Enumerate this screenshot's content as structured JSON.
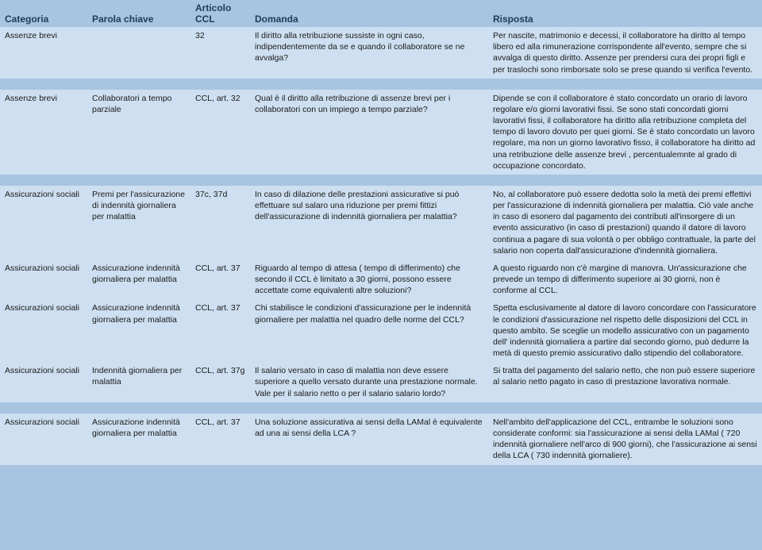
{
  "headers": {
    "categoria": "Categoria",
    "parola_chiave": "Parola chiave",
    "articolo": "Articolo CCL",
    "domanda": "Domanda",
    "risposta": "Risposta"
  },
  "groups": [
    {
      "rows": [
        {
          "categoria": "Assenze brevi",
          "parola_chiave": "",
          "articolo": "32",
          "domanda": "Il diritto alla retribuzione sussiste in ogni caso, indipendentemente da se e quando il collaboratore se ne avvalga?",
          "risposta": "Per nascite, matrimonio e decessi, il collaboratore ha diritto al tempo libero ed alla rimunerazione corrispondente all'evento, sempre che si avvalga di questo diritto. Assenze per prendersi cura dei propri figli e per traslochi sono rimborsate solo se prese quando si verifica l'evento."
        }
      ]
    },
    {
      "rows": [
        {
          "categoria": "Assenze brevi",
          "parola_chiave": "Collaboratori a tempo parziale",
          "articolo": "CCL, art. 32",
          "domanda": "Qual è il diritto alla retribuzione di assenze brevi per i collaboratori con un impiego a tempo parziale?",
          "risposta": "Dipende se con il collaboratore è stato concordato un orario di lavoro regolare e/o giorni lavorativi fissi. Se sono stati concordati giorni lavorativi fissi, il collaboratore ha diritto alla retribuzione completa del tempo di lavoro dovuto per quei giorni. Se è stato concordato un lavoro regolare, ma non un giorno lavorativo fisso, il collaboratore ha diritto ad una retribuzione delle assenze brevi , percentualemnte al grado di occupazione concordato."
        }
      ]
    },
    {
      "rows": [
        {
          "categoria": "Assicurazioni sociali",
          "parola_chiave": "Premi per l'assicurazione di indennità giornaliera per malattia",
          "articolo": "37c, 37d",
          "domanda": "In caso di dilazione delle prestazioni assicurative si può effettuare sul salaro una riduzione per premi fittizi dell'assicurazione di indennità giornaliera per malattia?",
          "risposta": "No, al collaboratore può essere dedotta solo la metà dei premi effettivi per l'assicurazione di indennità giornaliera per malattia. Ciò vale anche in caso di esonero dal pagamento dei contributi all'insorgere di un evento assicurativo (in caso di prestazioni) quando il datore di lavoro continua a pagare di sua volontà o per obbligo contrattuale, la parte del salario non coperta dall'assicurazione d'indennità giornaliera."
        },
        {
          "categoria": "Assicurazioni sociali",
          "parola_chiave": "Assicurazione indennità giornaliera per malattia",
          "articolo": "CCL, art. 37",
          "domanda": "Riguardo al tempo di attesa ( tempo di differimento) che secondo il CCL è limitato a 30 giorni, possono essere accettate come equivalenti altre soluzioni?",
          "risposta": "A questo riguardo non c'è margine di manovra. Un'assicurazione che prevede un tempo di differimento superiore ai 30 giorni, non è conforme al CCL."
        },
        {
          "categoria": "Assicurazioni sociali",
          "parola_chiave": "Assicurazione indennità giornaliera per malattia",
          "articolo": "CCL, art. 37",
          "domanda": "Chi stabilisce le condizioni d'assicurazione per le indennità giornaliere per malattia nel quadro delle norme del CCL?",
          "risposta": "Spetta esclusivamente al datore di lavoro concordare con l'assicuratore le condizioni d'assicurazione nel rispetto delle disposizioni del CCL in questo ambito. Se sceglie un modello assicurativo con un pagamento dell' indennità giornaliera a partire dal secondo giorno, può dedurre la metà di questo premio assicurativo dallo stipendio del collaboratore."
        },
        {
          "categoria": "Assicurazioni sociali",
          "parola_chiave": "Indennità giornaliera per malattia",
          "articolo": "CCL, art. 37g",
          "domanda": "Il salario versato in caso di malattia non deve essere superiore a quello versato durante una prestazione normale. Vale per il salario netto o per il salario salario lordo?",
          "risposta": "Si tratta del pagamento del salario netto, che non può essere superiore al salario netto pagato in caso di prestazione lavorativa normale."
        }
      ]
    },
    {
      "rows": [
        {
          "categoria": "Assicurazioni sociali",
          "parola_chiave": "Assicurazione indennità giornaliera per malattia",
          "articolo": "CCL, art. 37",
          "domanda": "Una soluzione assicurativa ai sensi della LAMal è equivalente ad una ai sensi della LCA ?",
          "risposta": "Nell'ambito dell'applicazione del CCL, entrambe le soluzioni sono considerate conformi: sia l'assicurazione ai sensi della LAMal ( 720 indennità giornaliere nell'arco di 900 giorni), che l'assicurazione ai sensi della LCA ( 730 indennità giornaliere)."
        }
      ]
    }
  ]
}
